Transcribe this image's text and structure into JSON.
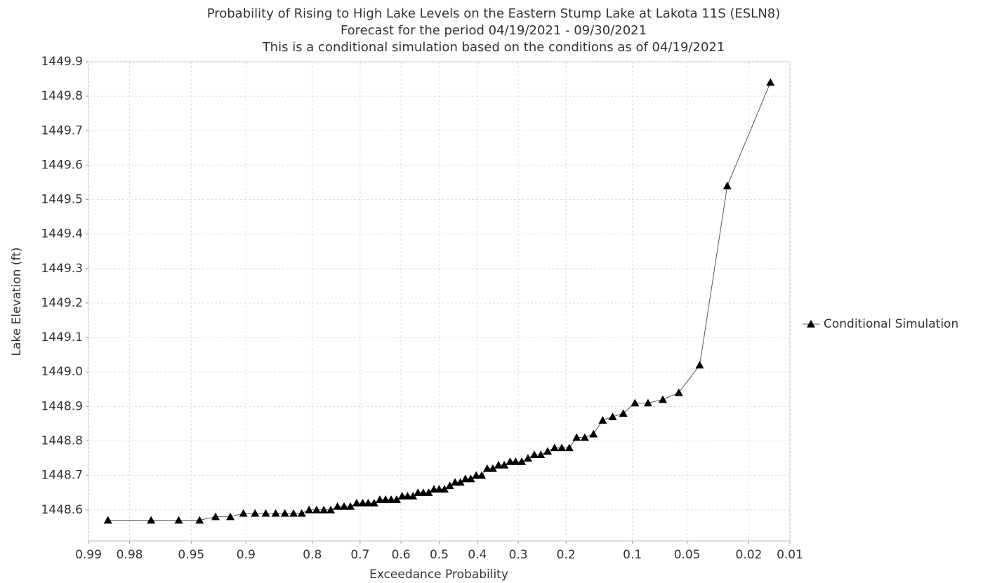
{
  "chart_data": {
    "type": "line",
    "title": "Probability of Rising to High Lake Levels on the Eastern Stump Lake at Lakota 11S (ESLN8)",
    "subtitle": [
      "Forecast for the period 04/19/2021 - 09/30/2021",
      "This is a conditional simulation based on the conditions as of 04/19/2021"
    ],
    "x_label": "Exceedance Probability",
    "y_label": "Lake Elevation (ft)",
    "x_scale": "probability",
    "xlim": [
      0.99,
      0.01
    ],
    "xticks": [
      0.99,
      0.98,
      0.95,
      0.9,
      0.8,
      0.7,
      0.6,
      0.5,
      0.4,
      0.3,
      0.2,
      0.1,
      0.05,
      0.02,
      0.01
    ],
    "ylim": [
      1448.51,
      1449.9
    ],
    "yticks": [
      1448.6,
      1448.7,
      1448.8,
      1448.9,
      {
        "value": 1449,
        "label": "1449.0"
      },
      1449.1,
      1449.2,
      1449.3,
      1449.4,
      {
        "value": 1449.5,
        "label": "1449.5"
      },
      1449.6,
      1449.7,
      1449.8,
      1449.9
    ],
    "grid": true,
    "legend": "right",
    "x": [
      0.986,
      0.972,
      0.958,
      0.944,
      0.931,
      0.917,
      0.903,
      0.889,
      0.875,
      0.861,
      0.847,
      0.833,
      0.819,
      0.806,
      0.792,
      0.778,
      0.764,
      0.75,
      0.736,
      0.722,
      0.708,
      0.694,
      0.681,
      0.667,
      0.653,
      0.639,
      0.625,
      0.611,
      0.597,
      0.583,
      0.569,
      0.556,
      0.542,
      0.528,
      0.514,
      0.5,
      0.486,
      0.472,
      0.458,
      0.444,
      0.431,
      0.417,
      0.403,
      0.389,
      0.375,
      0.361,
      0.347,
      0.333,
      0.319,
      0.306,
      0.292,
      0.278,
      0.264,
      0.25,
      0.236,
      0.222,
      0.208,
      0.194,
      0.181,
      0.167,
      0.153,
      0.139,
      0.125,
      0.111,
      0.097,
      0.083,
      0.069,
      0.056,
      0.042,
      0.028,
      0.014
    ],
    "series": [
      {
        "name": "Conditional Simulation",
        "color": "#000000",
        "line_color": "#555555",
        "values": [
          1448.57,
          1448.57,
          1448.57,
          1448.57,
          1448.58,
          1448.58,
          1448.59,
          1448.59,
          1448.59,
          1448.59,
          1448.59,
          1448.59,
          1448.59,
          1448.6,
          1448.6,
          1448.6,
          1448.6,
          1448.61,
          1448.61,
          1448.61,
          1448.62,
          1448.62,
          1448.62,
          1448.62,
          1448.63,
          1448.63,
          1448.63,
          1448.63,
          1448.64,
          1448.64,
          1448.64,
          1448.65,
          1448.65,
          1448.65,
          1448.66,
          1448.66,
          1448.66,
          1448.67,
          1448.68,
          1448.68,
          1448.69,
          1448.69,
          1448.7,
          1448.7,
          1448.72,
          1448.72,
          1448.73,
          1448.73,
          1448.74,
          1448.74,
          1448.74,
          1448.75,
          1448.76,
          1448.76,
          1448.77,
          1448.78,
          1448.78,
          1448.78,
          1448.81,
          1448.81,
          1448.82,
          1448.86,
          1448.87,
          1448.88,
          1448.91,
          1448.91,
          1448.92,
          1448.94,
          1449.02,
          1449.54,
          1449.84
        ]
      }
    ]
  }
}
